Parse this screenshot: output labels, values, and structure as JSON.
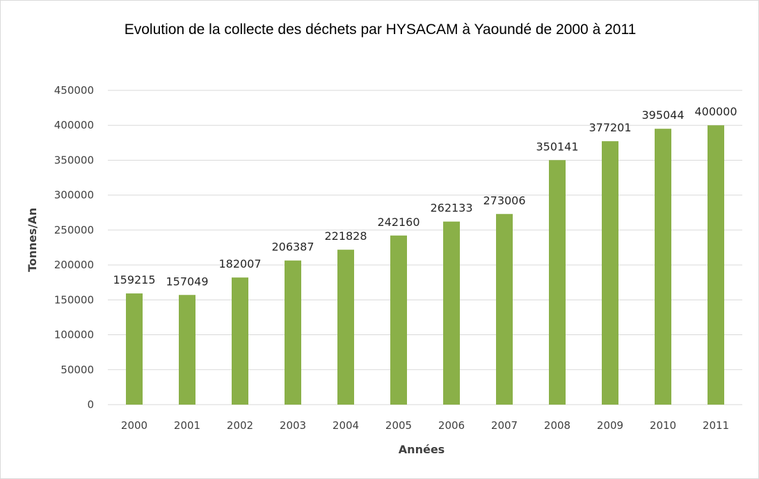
{
  "chart_data": {
    "type": "bar",
    "title": "Evolution de la collecte des déchets par HYSACAM à Yaoundé de 2000 à 2011",
    "xlabel": "Années",
    "ylabel": "Tonnes/An",
    "categories": [
      "2000",
      "2001",
      "2002",
      "2003",
      "2004",
      "2005",
      "2006",
      "2007",
      "2008",
      "2009",
      "2010",
      "2011"
    ],
    "values": [
      159215,
      157049,
      182007,
      206387,
      221828,
      242160,
      262133,
      273006,
      350141,
      377201,
      395044,
      400000
    ],
    "ylim": [
      0,
      450000
    ],
    "yticks": [
      0,
      50000,
      100000,
      150000,
      200000,
      250000,
      300000,
      350000,
      400000,
      450000
    ],
    "grid": true,
    "legend": "none",
    "bar_color": "#8ab048",
    "gridline_color": "#d9d9d9"
  }
}
